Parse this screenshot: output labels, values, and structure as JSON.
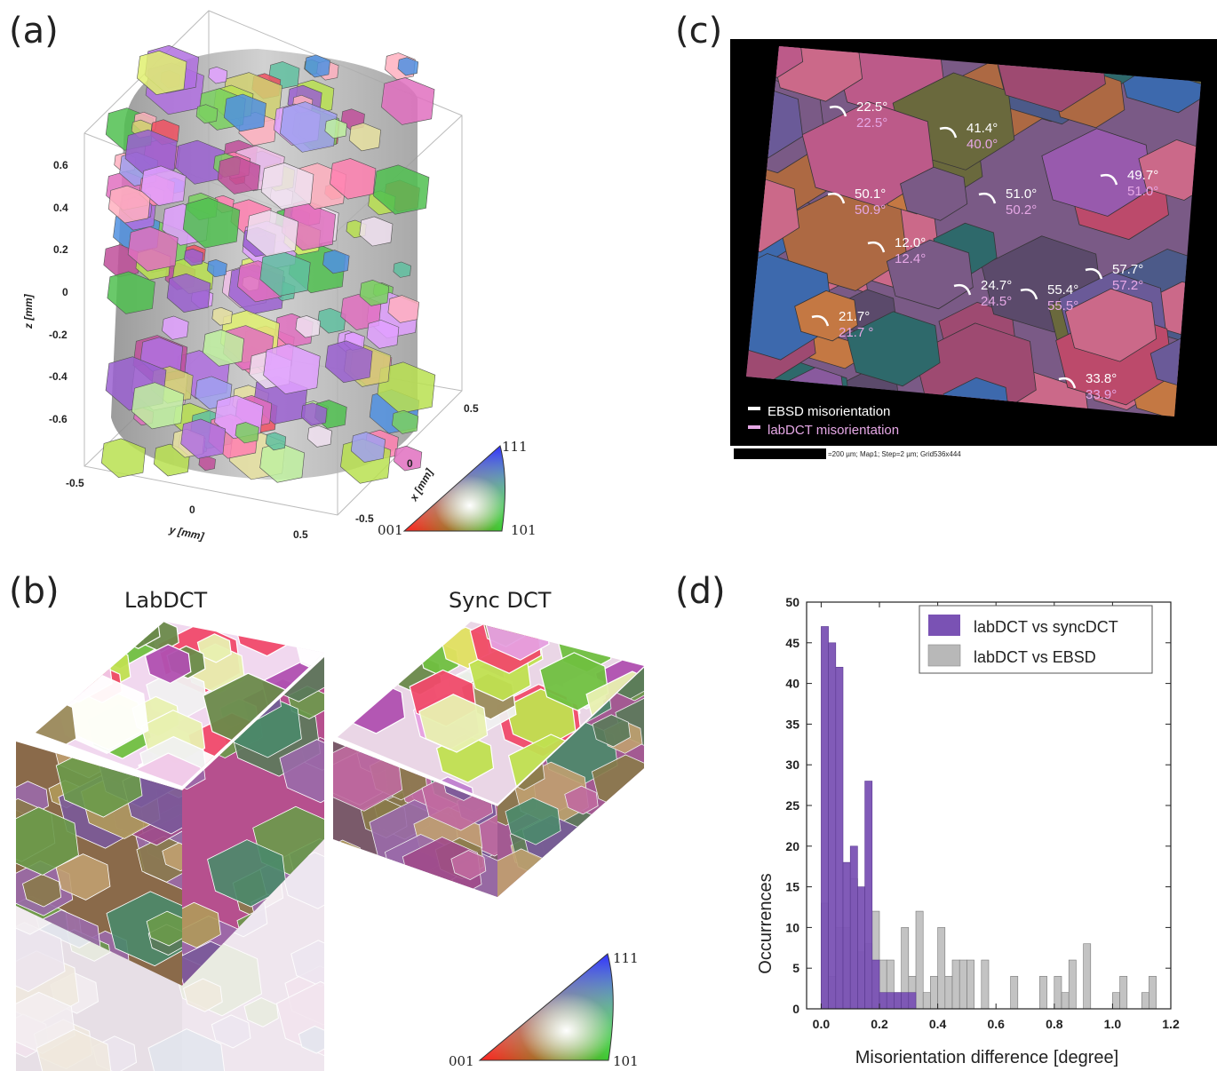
{
  "panels": {
    "a": "(a)",
    "b": "(b)",
    "c": "(c)",
    "d": "(d)"
  },
  "panel_a": {
    "z_axis_label": "z [mm]",
    "x_axis_label": "x [mm]",
    "y_axis_label": "y [mm]",
    "z_ticks": [
      "0.6",
      "0.4",
      "0.2",
      "0",
      "-0.2",
      "-0.4",
      "-0.6"
    ],
    "y_ticks": [
      "-0.5",
      "0",
      "0.5"
    ],
    "x_ticks": [
      "0.5",
      "0",
      "-0.5"
    ],
    "ipf": {
      "corner_001": "001",
      "corner_101": "101",
      "corner_111": "111"
    }
  },
  "panel_b": {
    "left_title": "LabDCT",
    "right_title": "Sync DCT",
    "ipf": {
      "corner_001": "001",
      "corner_101": "101",
      "corner_111": "111"
    }
  },
  "panel_c": {
    "annotations": [
      {
        "ebsd": "22.5°",
        "lab": "22.5°"
      },
      {
        "ebsd": "41.4°",
        "lab": "40.0°"
      },
      {
        "ebsd": "49.7°",
        "lab": "51.0°"
      },
      {
        "ebsd": "50.1°",
        "lab": "50.9°"
      },
      {
        "ebsd": "51.0°",
        "lab": "50.2°"
      },
      {
        "ebsd": "12.0°",
        "lab": "12.4°"
      },
      {
        "ebsd": "57.7°",
        "lab": "57.2°"
      },
      {
        "ebsd": "24.7°",
        "lab": "24.5°"
      },
      {
        "ebsd": "55.4°",
        "lab": "55.5°"
      },
      {
        "ebsd": "21.7°",
        "lab": "21.7 °"
      },
      {
        "ebsd": "33.8°",
        "lab": "33.9°"
      }
    ],
    "legend_ebsd": "EBSD misorientation",
    "legend_lab": "labDCT misorientation",
    "scale_text": "=200 µm; Map1; Step=2 µm; Grid536x444"
  },
  "chart_data": {
    "type": "bar",
    "xlabel": "Misorientation difference [degree]",
    "ylabel": "Occurrences",
    "xlim": [
      -0.05,
      1.2
    ],
    "ylim": [
      0,
      50
    ],
    "xticks": [
      "0.0",
      "0.2",
      "0.4",
      "0.6",
      "0.8",
      "1.0",
      "1.2"
    ],
    "yticks": [
      "0",
      "5",
      "10",
      "15",
      "20",
      "25",
      "30",
      "35",
      "40",
      "45",
      "50"
    ],
    "bin_width": 0.025,
    "series": [
      {
        "name": "labDCT vs syncDCT",
        "color": "#7a52b4",
        "x": [
          0.0,
          0.025,
          0.05,
          0.075,
          0.1,
          0.125,
          0.15,
          0.175,
          0.2,
          0.225,
          0.25,
          0.275,
          0.3
        ],
        "values": [
          47,
          45,
          42,
          18,
          20,
          15,
          28,
          6,
          2,
          2,
          2,
          2,
          2
        ]
      },
      {
        "name": "labDCT vs EBSD",
        "color": "#b8b8b8",
        "x": [
          0.0,
          0.025,
          0.05,
          0.075,
          0.1,
          0.125,
          0.15,
          0.175,
          0.2,
          0.225,
          0.25,
          0.275,
          0.3,
          0.325,
          0.35,
          0.375,
          0.4,
          0.425,
          0.45,
          0.475,
          0.5,
          0.525,
          0.55,
          0.575,
          0.6,
          0.625,
          0.65,
          0.675,
          0.7,
          0.725,
          0.75,
          0.775,
          0.8,
          0.825,
          0.85,
          0.875,
          0.9,
          0.925,
          0.95,
          0.975,
          1.0,
          1.025,
          1.05,
          1.075,
          1.1,
          1.125
        ],
        "values": [
          13,
          4,
          10,
          10,
          16,
          7,
          8,
          12,
          6,
          6,
          2,
          10,
          4,
          12,
          2,
          4,
          10,
          4,
          6,
          6,
          6,
          0,
          6,
          0,
          0,
          0,
          4,
          0,
          0,
          0,
          4,
          0,
          4,
          2,
          6,
          0,
          8,
          0,
          0,
          0,
          2,
          4,
          0,
          0,
          2,
          4
        ]
      }
    ]
  }
}
